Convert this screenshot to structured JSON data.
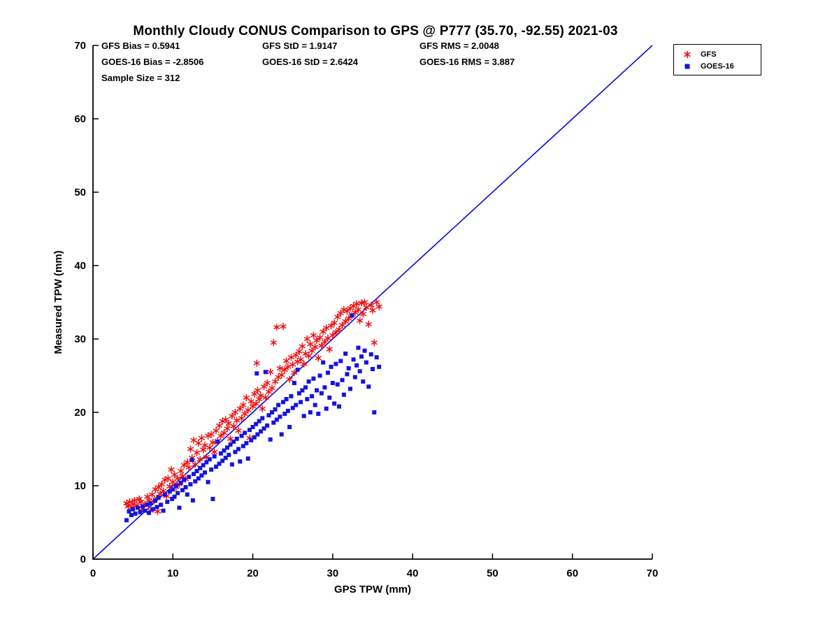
{
  "chart_data": {
    "type": "scatter",
    "title": "Monthly Cloudy CONUS Comparison to GPS @ P777 (35.70, -92.55) 2021-03",
    "xlabel": "GPS TPW (mm)",
    "ylabel": "Measured TPW (mm)",
    "xlim": [
      0,
      70
    ],
    "ylim": [
      0,
      70
    ],
    "xticks": [
      0,
      10,
      20,
      30,
      40,
      50,
      60,
      70
    ],
    "yticks": [
      0,
      10,
      20,
      30,
      40,
      50,
      60,
      70
    ],
    "grid": false,
    "stats": {
      "gfs_bias": "GFS Bias = 0.5941",
      "gfs_std": "GFS StD = 1.9147",
      "gfs_rms": "GFS RMS = 2.0048",
      "goes_bias": "GOES-16 Bias = -2.8506",
      "goes_std": "GOES-16 StD = 2.6424",
      "goes_rms": "GOES-16 RMS = 3.887",
      "sample_size": "Sample Size = 312"
    },
    "reference_line": {
      "from": [
        0,
        0
      ],
      "to": [
        70,
        70
      ],
      "color": "#0808e0"
    },
    "legend": {
      "position": "top-right"
    },
    "series": [
      {
        "name": "GFS",
        "marker": "asterisk",
        "color": "#ee1111",
        "points": [
          [
            4.2,
            7.6
          ],
          [
            4.4,
            7.2
          ],
          [
            4.6,
            7.8
          ],
          [
            4.8,
            7.0
          ],
          [
            5.0,
            7.5
          ],
          [
            5.2,
            8.0
          ],
          [
            5.5,
            7.3
          ],
          [
            5.8,
            8.2
          ],
          [
            6.0,
            7.8
          ],
          [
            6.2,
            6.9
          ],
          [
            6.5,
            7.5
          ],
          [
            6.8,
            8.5
          ],
          [
            7.0,
            8.0
          ],
          [
            7.2,
            6.6
          ],
          [
            7.4,
            8.8
          ],
          [
            7.6,
            7.9
          ],
          [
            7.8,
            9.5
          ],
          [
            8.0,
            8.3
          ],
          [
            8.1,
            6.5
          ],
          [
            8.2,
            9.8
          ],
          [
            8.4,
            8.9
          ],
          [
            8.6,
            10.2
          ],
          [
            8.8,
            9.3
          ],
          [
            9.0,
            10.8
          ],
          [
            9.2,
            8.6
          ],
          [
            9.4,
            11.0
          ],
          [
            9.6,
            9.9
          ],
          [
            9.8,
            12.2
          ],
          [
            10.0,
            10.5
          ],
          [
            10.2,
            11.5
          ],
          [
            10.4,
            9.8
          ],
          [
            10.6,
            11.0
          ],
          [
            10.8,
            10.2
          ],
          [
            11.0,
            12.0
          ],
          [
            11.2,
            11.3
          ],
          [
            11.4,
            12.8
          ],
          [
            11.6,
            10.9
          ],
          [
            11.8,
            13.2
          ],
          [
            12.0,
            12.5
          ],
          [
            12.2,
            15.0
          ],
          [
            12.4,
            13.8
          ],
          [
            12.6,
            16.2
          ],
          [
            12.8,
            12.9
          ],
          [
            13.0,
            14.5
          ],
          [
            13.2,
            15.8
          ],
          [
            13.4,
            13.6
          ],
          [
            13.6,
            16.5
          ],
          [
            13.8,
            14.9
          ],
          [
            14.0,
            15.5
          ],
          [
            14.2,
            13.9
          ],
          [
            14.4,
            16.8
          ],
          [
            14.6,
            15.2
          ],
          [
            14.8,
            17.0
          ],
          [
            15.0,
            15.9
          ],
          [
            15.2,
            14.6
          ],
          [
            15.4,
            17.5
          ],
          [
            15.6,
            16.1
          ],
          [
            15.8,
            18.2
          ],
          [
            16.0,
            16.8
          ],
          [
            16.2,
            18.8
          ],
          [
            16.4,
            17.2
          ],
          [
            16.6,
            19.0
          ],
          [
            16.8,
            17.8
          ],
          [
            17.0,
            18.5
          ],
          [
            17.2,
            16.4
          ],
          [
            17.4,
            19.5
          ],
          [
            17.6,
            18.1
          ],
          [
            17.8,
            20.0
          ],
          [
            18.0,
            18.9
          ],
          [
            18.2,
            17.5
          ],
          [
            18.4,
            20.5
          ],
          [
            18.6,
            19.2
          ],
          [
            18.8,
            21.0
          ],
          [
            19.0,
            19.8
          ],
          [
            19.2,
            22.0
          ],
          [
            19.4,
            20.3
          ],
          [
            19.6,
            16.5
          ],
          [
            19.8,
            21.5
          ],
          [
            20.0,
            20.8
          ],
          [
            20.2,
            22.5
          ],
          [
            20.4,
            21.2
          ],
          [
            20.5,
            26.7
          ],
          [
            20.6,
            23.0
          ],
          [
            20.8,
            21.8
          ],
          [
            21.0,
            22.3
          ],
          [
            21.2,
            20.5
          ],
          [
            21.4,
            23.5
          ],
          [
            21.6,
            22.0
          ],
          [
            21.8,
            24.0
          ],
          [
            22.0,
            22.8
          ],
          [
            22.2,
            25.5
          ],
          [
            22.4,
            23.3
          ],
          [
            22.6,
            29.5
          ],
          [
            22.8,
            24.2
          ],
          [
            23.0,
            31.6
          ],
          [
            23.2,
            24.8
          ],
          [
            23.4,
            26.0
          ],
          [
            23.6,
            25.1
          ],
          [
            23.8,
            31.7
          ],
          [
            24.0,
            25.8
          ],
          [
            24.2,
            27.0
          ],
          [
            24.4,
            26.2
          ],
          [
            24.6,
            24.5
          ],
          [
            24.8,
            27.5
          ],
          [
            25.0,
            26.5
          ],
          [
            25.2,
            25.4
          ],
          [
            25.4,
            27.8
          ],
          [
            25.6,
            26.9
          ],
          [
            25.8,
            28.3
          ],
          [
            26.0,
            27.2
          ],
          [
            26.2,
            29.0
          ],
          [
            26.4,
            26.6
          ],
          [
            26.6,
            28.0
          ],
          [
            26.8,
            30.0
          ],
          [
            27.0,
            27.7
          ],
          [
            27.2,
            29.3
          ],
          [
            27.4,
            28.4
          ],
          [
            27.6,
            30.5
          ],
          [
            27.8,
            28.9
          ],
          [
            28.0,
            29.8
          ],
          [
            28.2,
            27.4
          ],
          [
            28.4,
            30.2
          ],
          [
            28.6,
            29.1
          ],
          [
            28.8,
            31.0
          ],
          [
            29.0,
            29.6
          ],
          [
            29.2,
            31.5
          ],
          [
            29.4,
            30.1
          ],
          [
            29.6,
            28.6
          ],
          [
            29.8,
            31.8
          ],
          [
            30.0,
            30.5
          ],
          [
            30.2,
            32.2
          ],
          [
            30.4,
            30.9
          ],
          [
            30.6,
            33.0
          ],
          [
            30.8,
            31.3
          ],
          [
            31.0,
            33.5
          ],
          [
            31.2,
            31.9
          ],
          [
            31.4,
            34.0
          ],
          [
            31.6,
            32.4
          ],
          [
            31.8,
            33.8
          ],
          [
            32.0,
            32.8
          ],
          [
            32.2,
            34.2
          ],
          [
            32.4,
            33.2
          ],
          [
            32.6,
            34.5
          ],
          [
            32.8,
            33.6
          ],
          [
            33.0,
            34.8
          ],
          [
            33.2,
            34.0
          ],
          [
            33.4,
            32.5
          ],
          [
            33.6,
            34.9
          ],
          [
            33.8,
            33.4
          ],
          [
            34.0,
            35.0
          ],
          [
            34.2,
            34.3
          ],
          [
            34.5,
            32.0
          ],
          [
            34.8,
            34.6
          ],
          [
            35.0,
            33.9
          ],
          [
            35.2,
            29.5
          ],
          [
            35.5,
            35.0
          ],
          [
            35.8,
            34.4
          ]
        ]
      },
      {
        "name": "GOES-16",
        "marker": "square",
        "color": "#1414e0",
        "points": [
          [
            4.2,
            5.3
          ],
          [
            4.5,
            6.5
          ],
          [
            4.8,
            6.0
          ],
          [
            5.0,
            6.8
          ],
          [
            5.3,
            6.2
          ],
          [
            5.6,
            7.0
          ],
          [
            5.9,
            6.4
          ],
          [
            6.2,
            7.2
          ],
          [
            6.5,
            6.6
          ],
          [
            6.8,
            7.4
          ],
          [
            7.0,
            6.3
          ],
          [
            7.2,
            7.6
          ],
          [
            7.5,
            6.8
          ],
          [
            7.8,
            8.0
          ],
          [
            8.0,
            7.1
          ],
          [
            8.2,
            8.4
          ],
          [
            8.5,
            7.4
          ],
          [
            8.8,
            6.6
          ],
          [
            9.0,
            8.8
          ],
          [
            9.3,
            7.8
          ],
          [
            9.6,
            9.2
          ],
          [
            9.9,
            8.2
          ],
          [
            10.0,
            9.5
          ],
          [
            10.2,
            8.5
          ],
          [
            10.4,
            10.0
          ],
          [
            10.6,
            9.0
          ],
          [
            10.8,
            7.0
          ],
          [
            11.0,
            10.4
          ],
          [
            11.2,
            9.4
          ],
          [
            11.4,
            10.8
          ],
          [
            11.6,
            9.8
          ],
          [
            11.8,
            8.8
          ],
          [
            12.0,
            11.2
          ],
          [
            12.2,
            10.2
          ],
          [
            12.4,
            13.5
          ],
          [
            12.5,
            8.0
          ],
          [
            12.6,
            11.6
          ],
          [
            12.8,
            10.6
          ],
          [
            13.0,
            12.0
          ],
          [
            13.2,
            11.0
          ],
          [
            13.4,
            12.4
          ],
          [
            13.6,
            11.4
          ],
          [
            13.8,
            12.8
          ],
          [
            14.0,
            11.8
          ],
          [
            14.2,
            13.2
          ],
          [
            14.4,
            10.5
          ],
          [
            14.6,
            13.6
          ],
          [
            14.8,
            12.2
          ],
          [
            15.0,
            8.2
          ],
          [
            15.2,
            14.0
          ],
          [
            15.4,
            12.6
          ],
          [
            15.6,
            16.0
          ],
          [
            15.8,
            13.0
          ],
          [
            16.0,
            14.4
          ],
          [
            16.2,
            13.4
          ],
          [
            16.4,
            14.8
          ],
          [
            16.6,
            13.8
          ],
          [
            16.8,
            15.2
          ],
          [
            17.0,
            14.2
          ],
          [
            17.2,
            15.6
          ],
          [
            17.4,
            12.9
          ],
          [
            17.6,
            16.0
          ],
          [
            17.8,
            14.6
          ],
          [
            18.0,
            16.4
          ],
          [
            18.2,
            15.0
          ],
          [
            18.4,
            13.3
          ],
          [
            18.6,
            16.8
          ],
          [
            18.8,
            15.4
          ],
          [
            19.0,
            17.2
          ],
          [
            19.2,
            15.8
          ],
          [
            19.4,
            13.7
          ],
          [
            19.6,
            17.6
          ],
          [
            19.8,
            16.2
          ],
          [
            20.0,
            18.0
          ],
          [
            20.2,
            16.6
          ],
          [
            20.4,
            18.4
          ],
          [
            20.5,
            25.3
          ],
          [
            20.6,
            17.0
          ],
          [
            20.8,
            18.8
          ],
          [
            21.0,
            17.4
          ],
          [
            21.2,
            19.2
          ],
          [
            21.4,
            17.8
          ],
          [
            21.6,
            25.5
          ],
          [
            21.8,
            18.2
          ],
          [
            22.0,
            19.6
          ],
          [
            22.2,
            16.3
          ],
          [
            22.4,
            20.0
          ],
          [
            22.6,
            18.6
          ],
          [
            22.8,
            20.4
          ],
          [
            23.0,
            19.0
          ],
          [
            23.2,
            21.0
          ],
          [
            23.4,
            19.4
          ],
          [
            23.6,
            17.0
          ],
          [
            23.8,
            21.4
          ],
          [
            24.0,
            19.8
          ],
          [
            24.2,
            21.8
          ],
          [
            24.4,
            20.2
          ],
          [
            24.6,
            18.0
          ],
          [
            24.8,
            22.2
          ],
          [
            25.0,
            20.6
          ],
          [
            25.2,
            24.0
          ],
          [
            25.4,
            21.0
          ],
          [
            25.6,
            25.8
          ],
          [
            25.8,
            22.6
          ],
          [
            26.0,
            21.4
          ],
          [
            26.2,
            23.0
          ],
          [
            26.4,
            19.5
          ],
          [
            26.6,
            23.4
          ],
          [
            26.8,
            21.8
          ],
          [
            27.0,
            24.2
          ],
          [
            27.2,
            20.0
          ],
          [
            27.4,
            22.2
          ],
          [
            27.6,
            24.6
          ],
          [
            27.8,
            21.0
          ],
          [
            28.0,
            23.0
          ],
          [
            28.2,
            19.8
          ],
          [
            28.4,
            25.0
          ],
          [
            28.6,
            22.6
          ],
          [
            28.8,
            26.8
          ],
          [
            29.0,
            23.4
          ],
          [
            29.2,
            20.5
          ],
          [
            29.4,
            25.4
          ],
          [
            29.6,
            22.0
          ],
          [
            29.8,
            26.2
          ],
          [
            30.0,
            24.0
          ],
          [
            30.2,
            21.2
          ],
          [
            30.4,
            26.6
          ],
          [
            30.6,
            23.8
          ],
          [
            30.8,
            20.8
          ],
          [
            31.0,
            27.0
          ],
          [
            31.2,
            24.4
          ],
          [
            31.4,
            22.4
          ],
          [
            31.6,
            28.0
          ],
          [
            31.8,
            25.2
          ],
          [
            32.0,
            26.0
          ],
          [
            32.2,
            23.2
          ],
          [
            32.4,
            33.2
          ],
          [
            32.6,
            27.2
          ],
          [
            32.8,
            24.8
          ],
          [
            33.0,
            26.4
          ],
          [
            33.2,
            28.8
          ],
          [
            33.4,
            25.6
          ],
          [
            33.6,
            27.6
          ],
          [
            33.8,
            24.2
          ],
          [
            34.0,
            28.4
          ],
          [
            34.2,
            26.8
          ],
          [
            34.5,
            23.5
          ],
          [
            34.8,
            27.9
          ],
          [
            35.0,
            25.9
          ],
          [
            35.2,
            20.0
          ],
          [
            35.5,
            27.5
          ],
          [
            35.8,
            26.2
          ]
        ]
      }
    ]
  }
}
